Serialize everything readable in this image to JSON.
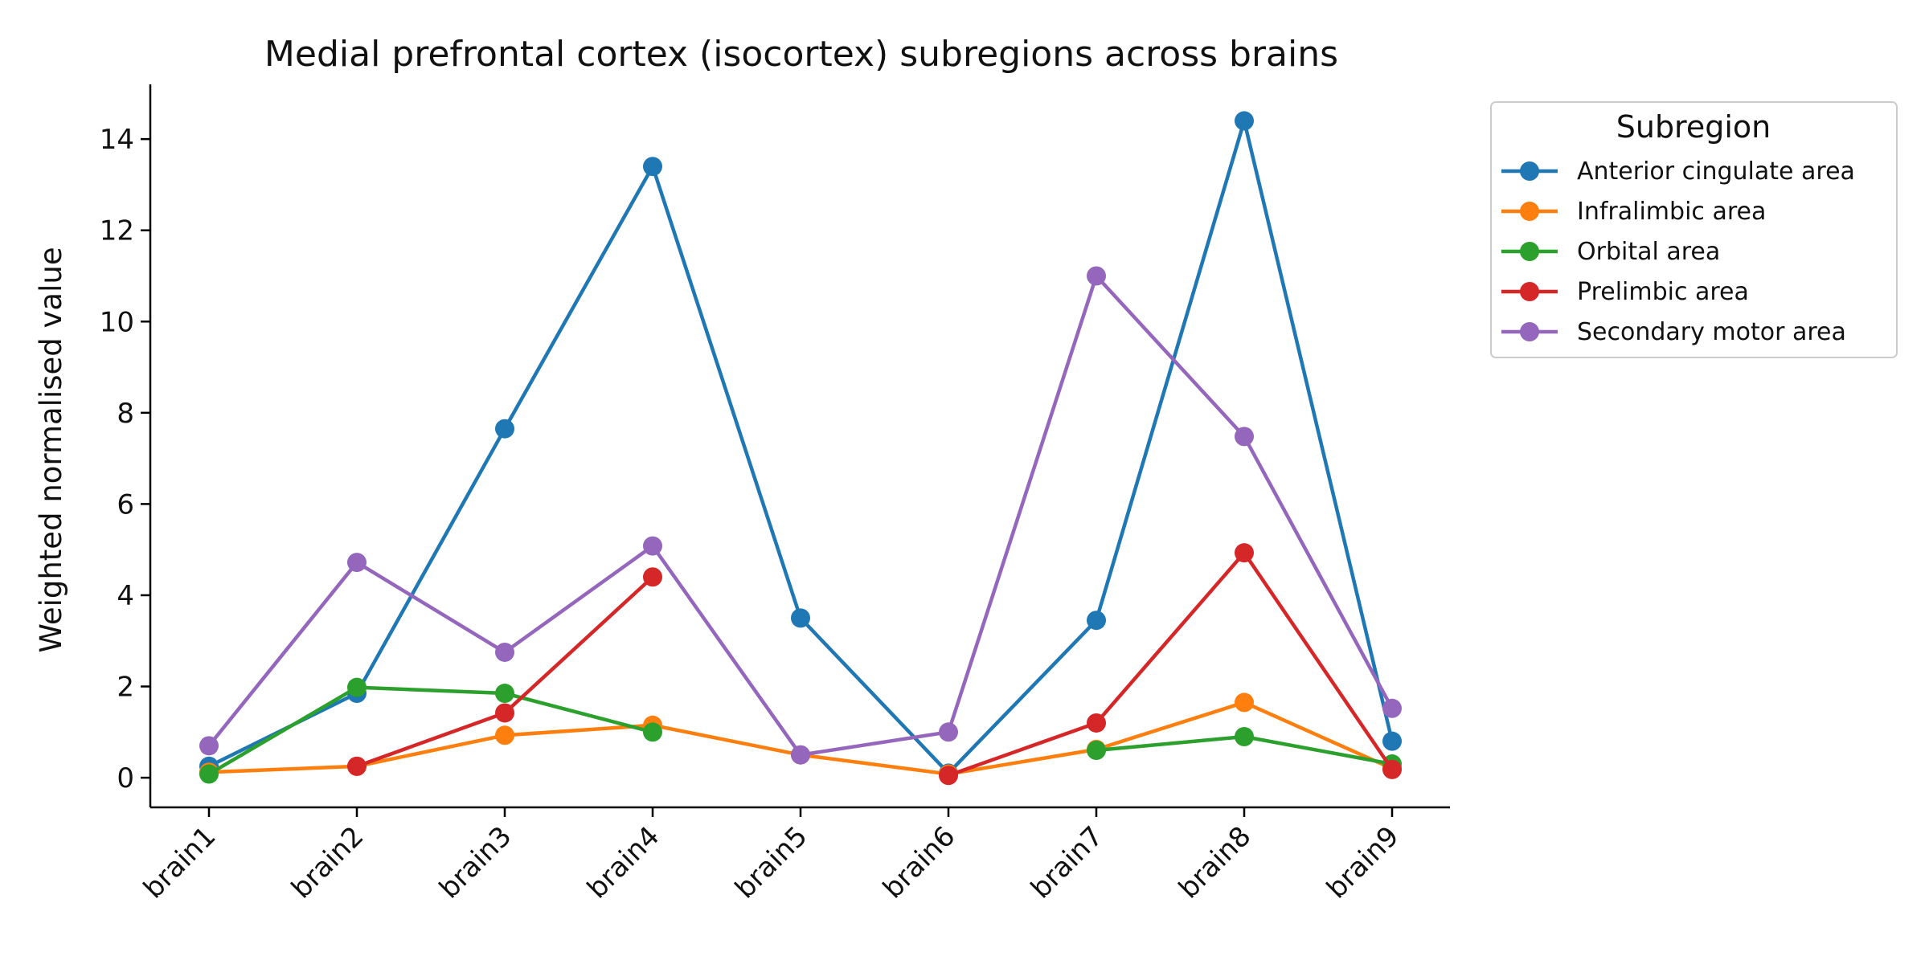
{
  "chart_data": {
    "type": "line",
    "title": "Medial prefrontal cortex (isocortex) subregions across brains",
    "xlabel": "",
    "ylabel": "Weighted normalised value",
    "categories": [
      "brain1",
      "brain2",
      "brain3",
      "brain4",
      "brain5",
      "brain6",
      "brain7",
      "brain8",
      "brain9"
    ],
    "ylim": [
      -0.65,
      15.2
    ],
    "yticks": [
      0,
      2,
      4,
      6,
      8,
      10,
      12,
      14
    ],
    "grid": false,
    "legend": {
      "title": "Subregion",
      "placement": "outside-top-right"
    },
    "series": [
      {
        "name": "Anterior cingulate area",
        "color": "#1f77b4",
        "values": [
          0.25,
          1.85,
          7.65,
          13.4,
          3.5,
          0.1,
          3.45,
          14.4,
          0.8
        ]
      },
      {
        "name": "Infralimbic area",
        "color": "#ff7f0e",
        "values": [
          0.12,
          0.25,
          0.93,
          1.15,
          0.5,
          0.08,
          0.62,
          1.65,
          0.2
        ]
      },
      {
        "name": "Orbital area",
        "color": "#2ca02c",
        "values": [
          0.08,
          1.98,
          1.85,
          1.0,
          null,
          null,
          0.6,
          0.9,
          0.3
        ]
      },
      {
        "name": "Prelimbic area",
        "color": "#d62728",
        "values": [
          null,
          0.25,
          1.42,
          4.4,
          null,
          0.05,
          1.2,
          4.93,
          0.18
        ]
      },
      {
        "name": "Secondary motor area",
        "color": "#9467bd",
        "values": [
          0.7,
          4.72,
          2.75,
          5.08,
          0.5,
          1.0,
          11.0,
          7.48,
          1.52
        ]
      }
    ]
  }
}
